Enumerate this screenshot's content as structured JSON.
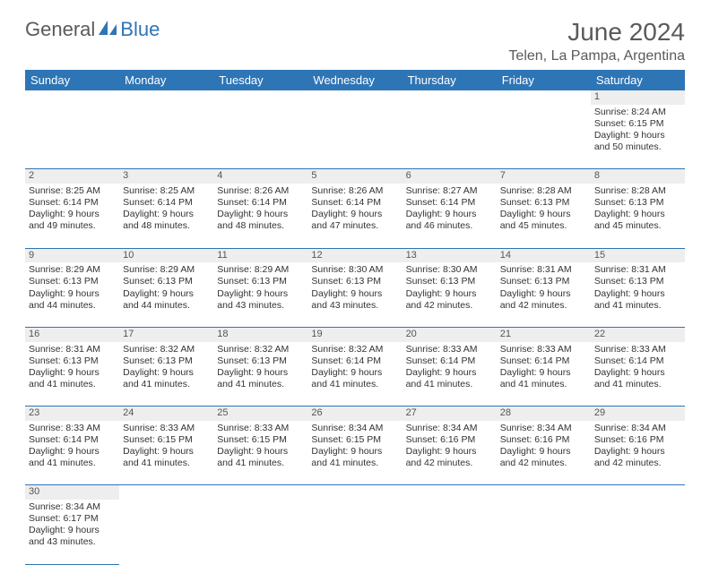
{
  "logo": {
    "part1": "General",
    "part2": "Blue"
  },
  "title": "June 2024",
  "location": "Telen, La Pampa, Argentina",
  "colors": {
    "header_bg": "#2e75b6",
    "header_fg": "#ffffff",
    "daynum_bg": "#eeeeee",
    "row_divider": "#2e75b6",
    "text": "#333333",
    "title_color": "#5a5a5a"
  },
  "weekdays": [
    "Sunday",
    "Monday",
    "Tuesday",
    "Wednesday",
    "Thursday",
    "Friday",
    "Saturday"
  ],
  "weeks": [
    [
      null,
      null,
      null,
      null,
      null,
      null,
      {
        "n": "1",
        "sr": "Sunrise: 8:24 AM",
        "ss": "Sunset: 6:15 PM",
        "d1": "Daylight: 9 hours",
        "d2": "and 50 minutes."
      }
    ],
    [
      {
        "n": "2",
        "sr": "Sunrise: 8:25 AM",
        "ss": "Sunset: 6:14 PM",
        "d1": "Daylight: 9 hours",
        "d2": "and 49 minutes."
      },
      {
        "n": "3",
        "sr": "Sunrise: 8:25 AM",
        "ss": "Sunset: 6:14 PM",
        "d1": "Daylight: 9 hours",
        "d2": "and 48 minutes."
      },
      {
        "n": "4",
        "sr": "Sunrise: 8:26 AM",
        "ss": "Sunset: 6:14 PM",
        "d1": "Daylight: 9 hours",
        "d2": "and 48 minutes."
      },
      {
        "n": "5",
        "sr": "Sunrise: 8:26 AM",
        "ss": "Sunset: 6:14 PM",
        "d1": "Daylight: 9 hours",
        "d2": "and 47 minutes."
      },
      {
        "n": "6",
        "sr": "Sunrise: 8:27 AM",
        "ss": "Sunset: 6:14 PM",
        "d1": "Daylight: 9 hours",
        "d2": "and 46 minutes."
      },
      {
        "n": "7",
        "sr": "Sunrise: 8:28 AM",
        "ss": "Sunset: 6:13 PM",
        "d1": "Daylight: 9 hours",
        "d2": "and 45 minutes."
      },
      {
        "n": "8",
        "sr": "Sunrise: 8:28 AM",
        "ss": "Sunset: 6:13 PM",
        "d1": "Daylight: 9 hours",
        "d2": "and 45 minutes."
      }
    ],
    [
      {
        "n": "9",
        "sr": "Sunrise: 8:29 AM",
        "ss": "Sunset: 6:13 PM",
        "d1": "Daylight: 9 hours",
        "d2": "and 44 minutes."
      },
      {
        "n": "10",
        "sr": "Sunrise: 8:29 AM",
        "ss": "Sunset: 6:13 PM",
        "d1": "Daylight: 9 hours",
        "d2": "and 44 minutes."
      },
      {
        "n": "11",
        "sr": "Sunrise: 8:29 AM",
        "ss": "Sunset: 6:13 PM",
        "d1": "Daylight: 9 hours",
        "d2": "and 43 minutes."
      },
      {
        "n": "12",
        "sr": "Sunrise: 8:30 AM",
        "ss": "Sunset: 6:13 PM",
        "d1": "Daylight: 9 hours",
        "d2": "and 43 minutes."
      },
      {
        "n": "13",
        "sr": "Sunrise: 8:30 AM",
        "ss": "Sunset: 6:13 PM",
        "d1": "Daylight: 9 hours",
        "d2": "and 42 minutes."
      },
      {
        "n": "14",
        "sr": "Sunrise: 8:31 AM",
        "ss": "Sunset: 6:13 PM",
        "d1": "Daylight: 9 hours",
        "d2": "and 42 minutes."
      },
      {
        "n": "15",
        "sr": "Sunrise: 8:31 AM",
        "ss": "Sunset: 6:13 PM",
        "d1": "Daylight: 9 hours",
        "d2": "and 41 minutes."
      }
    ],
    [
      {
        "n": "16",
        "sr": "Sunrise: 8:31 AM",
        "ss": "Sunset: 6:13 PM",
        "d1": "Daylight: 9 hours",
        "d2": "and 41 minutes."
      },
      {
        "n": "17",
        "sr": "Sunrise: 8:32 AM",
        "ss": "Sunset: 6:13 PM",
        "d1": "Daylight: 9 hours",
        "d2": "and 41 minutes."
      },
      {
        "n": "18",
        "sr": "Sunrise: 8:32 AM",
        "ss": "Sunset: 6:13 PM",
        "d1": "Daylight: 9 hours",
        "d2": "and 41 minutes."
      },
      {
        "n": "19",
        "sr": "Sunrise: 8:32 AM",
        "ss": "Sunset: 6:14 PM",
        "d1": "Daylight: 9 hours",
        "d2": "and 41 minutes."
      },
      {
        "n": "20",
        "sr": "Sunrise: 8:33 AM",
        "ss": "Sunset: 6:14 PM",
        "d1": "Daylight: 9 hours",
        "d2": "and 41 minutes."
      },
      {
        "n": "21",
        "sr": "Sunrise: 8:33 AM",
        "ss": "Sunset: 6:14 PM",
        "d1": "Daylight: 9 hours",
        "d2": "and 41 minutes."
      },
      {
        "n": "22",
        "sr": "Sunrise: 8:33 AM",
        "ss": "Sunset: 6:14 PM",
        "d1": "Daylight: 9 hours",
        "d2": "and 41 minutes."
      }
    ],
    [
      {
        "n": "23",
        "sr": "Sunrise: 8:33 AM",
        "ss": "Sunset: 6:14 PM",
        "d1": "Daylight: 9 hours",
        "d2": "and 41 minutes."
      },
      {
        "n": "24",
        "sr": "Sunrise: 8:33 AM",
        "ss": "Sunset: 6:15 PM",
        "d1": "Daylight: 9 hours",
        "d2": "and 41 minutes."
      },
      {
        "n": "25",
        "sr": "Sunrise: 8:33 AM",
        "ss": "Sunset: 6:15 PM",
        "d1": "Daylight: 9 hours",
        "d2": "and 41 minutes."
      },
      {
        "n": "26",
        "sr": "Sunrise: 8:34 AM",
        "ss": "Sunset: 6:15 PM",
        "d1": "Daylight: 9 hours",
        "d2": "and 41 minutes."
      },
      {
        "n": "27",
        "sr": "Sunrise: 8:34 AM",
        "ss": "Sunset: 6:16 PM",
        "d1": "Daylight: 9 hours",
        "d2": "and 42 minutes."
      },
      {
        "n": "28",
        "sr": "Sunrise: 8:34 AM",
        "ss": "Sunset: 6:16 PM",
        "d1": "Daylight: 9 hours",
        "d2": "and 42 minutes."
      },
      {
        "n": "29",
        "sr": "Sunrise: 8:34 AM",
        "ss": "Sunset: 6:16 PM",
        "d1": "Daylight: 9 hours",
        "d2": "and 42 minutes."
      }
    ],
    [
      {
        "n": "30",
        "sr": "Sunrise: 8:34 AM",
        "ss": "Sunset: 6:17 PM",
        "d1": "Daylight: 9 hours",
        "d2": "and 43 minutes."
      },
      null,
      null,
      null,
      null,
      null,
      null
    ]
  ]
}
